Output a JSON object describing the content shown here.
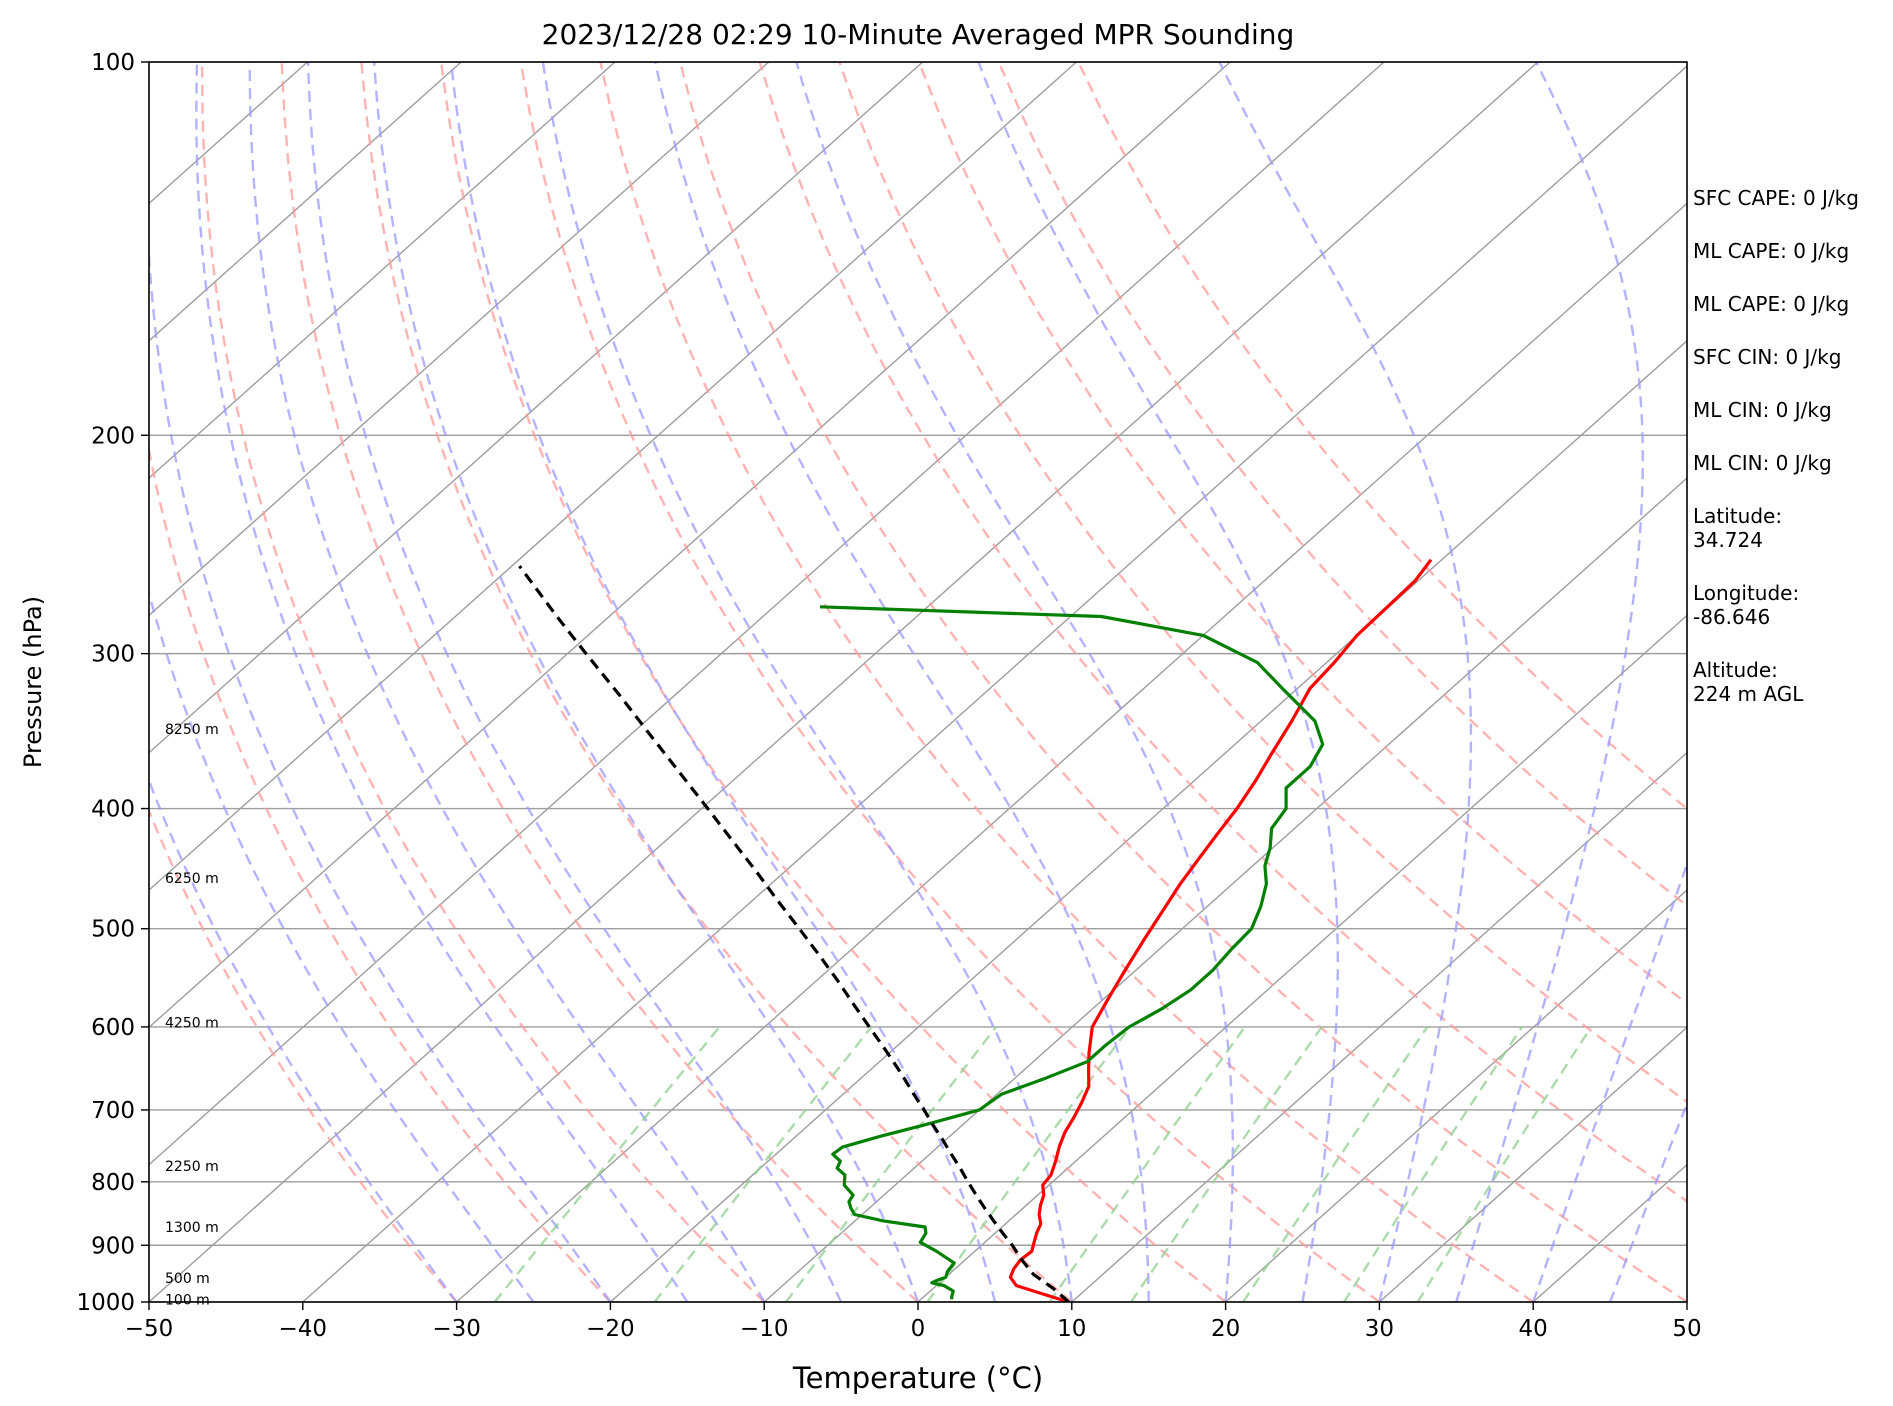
{
  "chart_data": {
    "type": "skew-t",
    "title": "2023/12/28 02:29 10-Minute Averaged MPR Sounding",
    "xlabel": "Temperature (°C)",
    "ylabel": "Pressure (hPa)",
    "xlim": [
      -50,
      50
    ],
    "ylim": [
      1000,
      100
    ],
    "y_scale": "log",
    "grid": true,
    "x_ticks": [
      "−50",
      "−40",
      "−30",
      "−20",
      "−10",
      "0",
      "10",
      "20",
      "30",
      "40",
      "50"
    ],
    "y_ticks": [
      "100",
      "200",
      "300",
      "400",
      "500",
      "600",
      "700",
      "800",
      "900",
      "1000"
    ],
    "colors": {
      "temperature": "#ff0000",
      "dewpoint": "#008000",
      "parcel": "#000000",
      "isotherm": "#9e9e9e",
      "dry_adiabat": "#ff9a9a",
      "moist_adiabat": "#9a9aff",
      "mixing_ratio": "#8fcf8f"
    },
    "series": [
      {
        "key": "temperature",
        "p": [
          1000,
          985,
          970,
          955,
          940,
          925,
          910,
          895,
          880,
          865,
          850,
          835,
          820,
          805,
          790,
          770,
          750,
          730,
          710,
          690,
          670,
          650,
          630,
          600,
          570,
          540,
          510,
          480,
          460,
          440,
          420,
          400,
          380,
          360,
          340,
          320,
          305,
          290,
          275,
          262,
          252
        ],
        "t": [
          9.8,
          7.5,
          5.2,
          4.2,
          3.8,
          3.6,
          3.7,
          3.2,
          2.7,
          2.3,
          1.5,
          0.9,
          0.4,
          -0.4,
          -0.6,
          -1.3,
          -2.1,
          -2.8,
          -3.3,
          -3.9,
          -4.6,
          -5.8,
          -7.0,
          -8.7,
          -9.7,
          -10.7,
          -11.7,
          -12.7,
          -13.4,
          -14.0,
          -14.6,
          -15.2,
          -16.0,
          -17.0,
          -18.0,
          -19.2,
          -19.5,
          -20.0,
          -20.1,
          -20.2,
          -20.7
        ]
      },
      {
        "key": "dewpoint",
        "p": [
          995,
          990,
          980,
          970,
          965,
          960,
          955,
          945,
          930,
          910,
          895,
          880,
          870,
          860,
          850,
          840,
          830,
          820,
          805,
          790,
          780,
          770,
          760,
          750,
          735,
          720,
          700,
          680,
          660,
          640,
          620,
          600,
          580,
          560,
          540,
          520,
          500,
          480,
          460,
          445,
          430,
          415,
          400,
          385,
          370,
          355,
          340,
          320,
          305,
          290,
          280,
          275
        ],
        "td": [
          2.0,
          1.8,
          1.5,
          0.5,
          -0.5,
          -0.3,
          0.0,
          -0.3,
          -0.5,
          -2.5,
          -4.2,
          -4.5,
          -5.0,
          -8.2,
          -10.5,
          -11.2,
          -11.8,
          -12.0,
          -13.3,
          -14.0,
          -15.0,
          -15.3,
          -16.3,
          -16.2,
          -14.5,
          -12.5,
          -10.0,
          -9.7,
          -8.0,
          -6.5,
          -6.5,
          -6.3,
          -5.5,
          -5.0,
          -5.0,
          -5.3,
          -5.5,
          -6.5,
          -7.8,
          -9.2,
          -10.2,
          -11.5,
          -12.0,
          -13.5,
          -13.5,
          -14.3,
          -16.5,
          -21.0,
          -24.5,
          -30.0,
          -38.0,
          -57.0
        ]
      },
      {
        "key": "parcel",
        "p": [
          1000,
          975,
          950,
          925,
          900,
          880,
          860,
          840,
          820,
          800,
          780,
          760,
          740,
          720,
          700,
          680,
          660,
          640,
          620,
          600,
          575,
          550,
          525,
          500,
          475,
          450,
          425,
          400,
          375,
          350,
          325,
          300,
          280,
          255
        ],
        "t": [
          9.8,
          7.8,
          5.5,
          3.7,
          2.0,
          0.5,
          -1.0,
          -2.5,
          -4.0,
          -5.5,
          -7.0,
          -8.6,
          -10.2,
          -11.9,
          -13.6,
          -15.4,
          -17.2,
          -19.1,
          -21.1,
          -23.2,
          -25.9,
          -28.7,
          -31.7,
          -34.9,
          -38.3,
          -41.8,
          -45.6,
          -49.6,
          -53.9,
          -58.5,
          -63.4,
          -68.8,
          -73.4,
          -79.5
        ]
      }
    ],
    "height_labels": [
      "8250 m",
      "6250 m",
      "4250 m",
      "2250 m",
      "1300 m",
      "500 m",
      "100 m"
    ],
    "height_label_pressures": [
      345,
      455,
      595,
      777,
      870,
      956,
      995
    ],
    "isotherm_temps": [
      -130,
      -120,
      -110,
      -100,
      -90,
      -80,
      -70,
      -60,
      -50,
      -40,
      -30,
      -20,
      -10,
      0,
      10,
      20,
      30,
      40,
      50
    ],
    "dry_adiabat_theta": [
      -30,
      -20,
      -10,
      0,
      10,
      20,
      30,
      40,
      50,
      60,
      70,
      80,
      90,
      100
    ],
    "moist_adiabat_t0": [
      -30,
      -25,
      -20,
      -15,
      -10,
      -5,
      0,
      5,
      10,
      15,
      20,
      25,
      30,
      35,
      40,
      45
    ],
    "mixing_ratio_gkg": [
      0.4,
      1,
      2,
      4,
      7,
      10,
      16,
      24,
      32
    ],
    "info": {
      "sfc_cape": "SFC CAPE: 0 J/kg",
      "ml_cape": "ML CAPE: 0 J/kg",
      "mu_cape": "ML CAPE: 0 J/kg",
      "sfc_cin": "SFC CIN: 0 J/kg",
      "ml_cin": "ML CIN: 0 J/kg",
      "mu_cin": "ML CIN: 0 J/kg",
      "latitude_label": "Latitude:",
      "latitude_value": "34.724",
      "longitude_label": "Longitude:",
      "longitude_value": "-86.646",
      "altitude_label": "Altitude:",
      "altitude_value": "224 m AGL"
    }
  }
}
